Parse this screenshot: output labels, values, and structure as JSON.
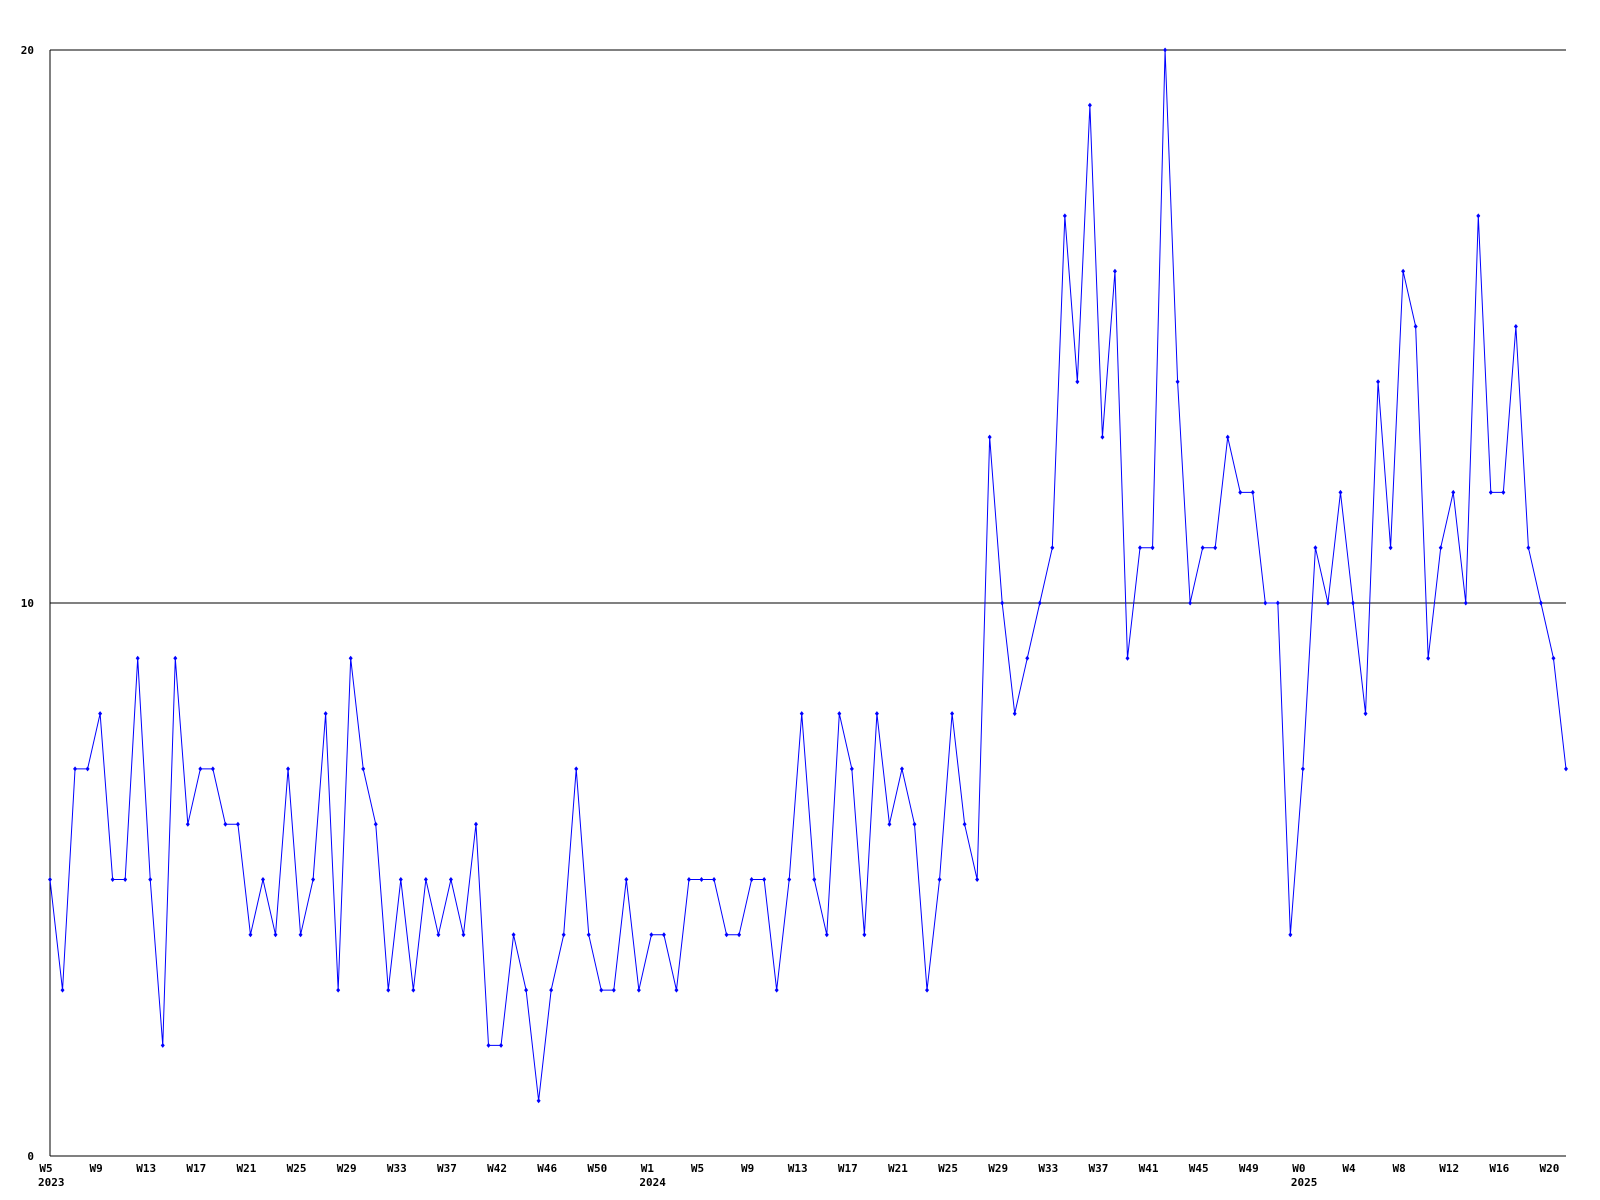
{
  "chart_data": {
    "type": "line",
    "color": "#0000ff",
    "grid": true,
    "ylim": [
      0,
      20
    ],
    "yticks": [
      0,
      10,
      20
    ],
    "categories": [
      "W5",
      null,
      null,
      null,
      "W9",
      null,
      null,
      null,
      "W13",
      null,
      null,
      null,
      "W17",
      null,
      null,
      null,
      "W21",
      null,
      null,
      null,
      "W25",
      null,
      null,
      null,
      "W29",
      null,
      null,
      null,
      "W33",
      null,
      null,
      null,
      "W37",
      null,
      null,
      null,
      "W42",
      null,
      null,
      null,
      "W46",
      null,
      null,
      null,
      "W50",
      null,
      null,
      null,
      "W1",
      null,
      null,
      null,
      "W5",
      null,
      null,
      null,
      "W9",
      null,
      null,
      null,
      "W13",
      null,
      null,
      null,
      "W17",
      null,
      null,
      null,
      "W21",
      null,
      null,
      null,
      "W25",
      null,
      null,
      null,
      "W29",
      null,
      null,
      null,
      "W33",
      null,
      null,
      null,
      "W37",
      null,
      null,
      null,
      "W41",
      null,
      null,
      null,
      "W45",
      null,
      null,
      null,
      "W49",
      null,
      null,
      null,
      "W0",
      null,
      null,
      null,
      "W4",
      null,
      null,
      null,
      "W8",
      null,
      null,
      null,
      "W12",
      null,
      null,
      null,
      "W16",
      null,
      null,
      null,
      "W20",
      null
    ],
    "categories_year": [
      "2023",
      null,
      null,
      null,
      null,
      null,
      null,
      null,
      null,
      null,
      null,
      null,
      null,
      null,
      null,
      null,
      null,
      null,
      null,
      null,
      null,
      null,
      null,
      null,
      null,
      null,
      null,
      null,
      null,
      null,
      null,
      null,
      null,
      null,
      null,
      null,
      null,
      null,
      null,
      null,
      null,
      null,
      null,
      null,
      null,
      null,
      null,
      null,
      "2024",
      null,
      null,
      null,
      null,
      null,
      null,
      null,
      null,
      null,
      null,
      null,
      null,
      null,
      null,
      null,
      null,
      null,
      null,
      null,
      null,
      null,
      null,
      null,
      null,
      null,
      null,
      null,
      null,
      null,
      null,
      null,
      null,
      null,
      null,
      null,
      null,
      null,
      null,
      null,
      null,
      null,
      null,
      null,
      null,
      null,
      null,
      null,
      null,
      null,
      null,
      null,
      "2025",
      null,
      null,
      null,
      null,
      null,
      null,
      null,
      null,
      null,
      null,
      null,
      null,
      null,
      null,
      null,
      null,
      null,
      null,
      null,
      null,
      null
    ],
    "values": [
      5,
      3,
      7,
      7,
      8,
      5,
      5,
      9,
      5,
      2,
      9,
      6,
      7,
      7,
      6,
      6,
      4,
      5,
      4,
      7,
      4,
      5,
      8,
      3,
      9,
      7,
      6,
      3,
      5,
      3,
      5,
      4,
      5,
      4,
      6,
      2,
      2,
      4,
      3,
      1,
      3,
      4,
      7,
      4,
      3,
      3,
      5,
      3,
      4,
      4,
      3,
      5,
      5,
      5,
      4,
      4,
      5,
      5,
      3,
      5,
      8,
      5,
      4,
      8,
      7,
      4,
      8,
      6,
      7,
      6,
      3,
      5,
      8,
      6,
      5,
      13,
      10,
      8,
      9,
      10,
      11,
      17,
      14,
      19,
      13,
      16,
      9,
      11,
      11,
      20,
      14,
      10,
      11,
      11,
      13,
      12,
      12,
      10,
      10,
      4,
      7,
      11,
      10,
      12,
      10,
      8,
      14,
      11,
      16,
      15,
      9,
      11,
      12,
      10,
      17,
      12,
      12,
      15,
      11,
      10,
      9,
      7
    ]
  }
}
